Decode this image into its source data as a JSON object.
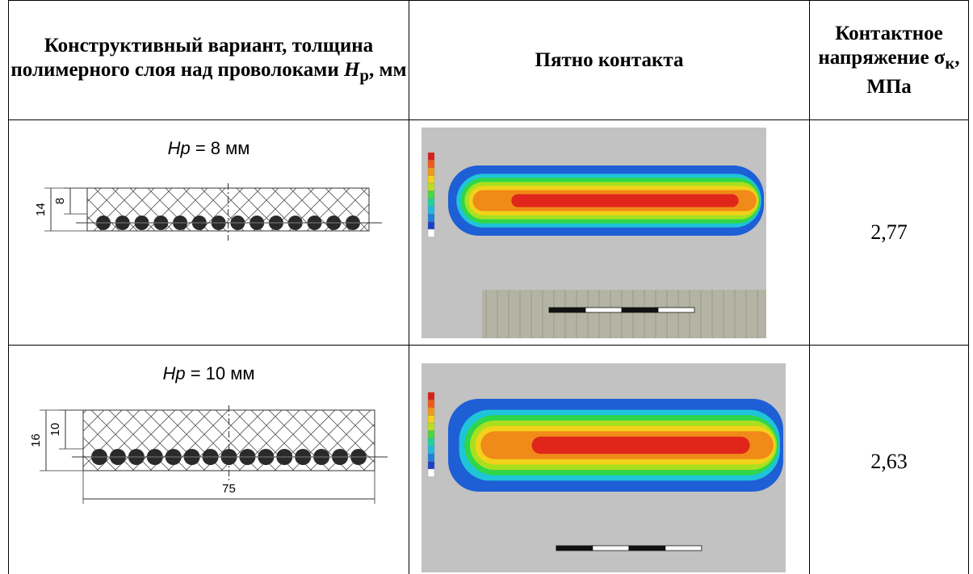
{
  "table": {
    "header": {
      "col1": {
        "text": "Конструктивный вариант, толщина полимерного слоя над проволоками",
        "symbol": "H",
        "subscript": "р",
        "unit": ", мм"
      },
      "col2": "Пятно контакта",
      "col3": {
        "text": "Контактное напряжение",
        "symbol": "σ",
        "subscript": "к",
        "unit": ", МПа"
      }
    },
    "rows": [
      {
        "label_symbol": "Hp",
        "label_rest": "= 8 мм",
        "dimensions": [
          "14",
          "8"
        ],
        "stress": "2,77"
      },
      {
        "label_symbol": "Hp",
        "label_rest": "= 10 мм",
        "dimensions": [
          "16",
          "10",
          "75"
        ],
        "stress": "2,63"
      }
    ]
  }
}
